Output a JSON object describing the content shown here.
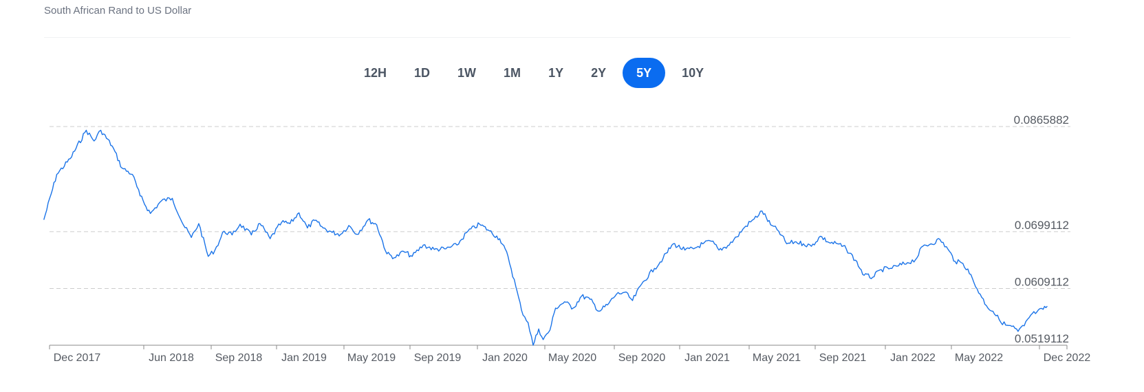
{
  "header": {
    "title": "South African Rand to US Dollar"
  },
  "ranges": {
    "items": [
      "12H",
      "1D",
      "1W",
      "1M",
      "1Y",
      "2Y",
      "5Y",
      "10Y"
    ],
    "active": "5Y"
  },
  "colors": {
    "accent": "#0a6cf0",
    "line": "#1a73e8",
    "grid": "#cccccc",
    "axis": "#888888"
  },
  "chart_data": {
    "type": "line",
    "title": "South African Rand to US Dollar",
    "xlabel": "",
    "ylabel": "",
    "ylim": [
      0.0519112,
      0.0865882
    ],
    "y_ticks": [
      0.0865882,
      0.0699112,
      0.0609112,
      0.0519112
    ],
    "y_tick_labels": [
      "0.0865882",
      "0.0699112",
      "0.0609112",
      "0.0519112"
    ],
    "x_ticks": [
      "2017-12-01",
      "2018-06-01",
      "2018-09-01",
      "2019-01-01",
      "2019-05-01",
      "2019-09-01",
      "2020-01-01",
      "2020-05-01",
      "2020-09-01",
      "2021-01-01",
      "2021-05-01",
      "2021-09-01",
      "2022-01-01",
      "2022-05-01",
      "2022-12-01"
    ],
    "x_tick_labels": [
      "Dec 2017",
      "Jun 2018",
      "Sep 2018",
      "Jan 2019",
      "May 2019",
      "Sep 2019",
      "Jan 2020",
      "May 2020",
      "Sep 2020",
      "Jan 2021",
      "May 2021",
      "Sep 2021",
      "Jan 2022",
      "May 2022",
      "Dec 2022"
    ],
    "grid": true,
    "series": [
      {
        "x": [
          "2017-11-20",
          "2017-12-15",
          "2018-01-10",
          "2018-02-10",
          "2018-02-25",
          "2018-03-10",
          "2018-04-01",
          "2018-04-20",
          "2018-05-10",
          "2018-05-25",
          "2018-06-10",
          "2018-06-25",
          "2018-07-10",
          "2018-07-25",
          "2018-08-05",
          "2018-08-15",
          "2018-08-28",
          "2018-09-08",
          "2018-09-25",
          "2018-10-10",
          "2018-10-25",
          "2018-11-15",
          "2018-12-01",
          "2018-12-20",
          "2019-01-10",
          "2019-01-25",
          "2019-02-10",
          "2019-02-25",
          "2019-03-10",
          "2019-03-25",
          "2019-04-10",
          "2019-04-25",
          "2019-05-10",
          "2019-05-25",
          "2019-06-15",
          "2019-07-01",
          "2019-07-20",
          "2019-08-05",
          "2019-08-20",
          "2019-09-05",
          "2019-09-25",
          "2019-10-15",
          "2019-11-05",
          "2019-11-25",
          "2019-12-15",
          "2020-01-05",
          "2020-01-20",
          "2020-02-10",
          "2020-02-25",
          "2020-03-10",
          "2020-03-20",
          "2020-04-01",
          "2020-04-10",
          "2020-04-20",
          "2020-04-28",
          "2020-05-10",
          "2020-05-20",
          "2020-06-05",
          "2020-06-20",
          "2020-07-05",
          "2020-07-20",
          "2020-08-05",
          "2020-08-20",
          "2020-09-05",
          "2020-09-20",
          "2020-10-05",
          "2020-10-25",
          "2020-11-15",
          "2020-12-01",
          "2020-12-20",
          "2021-01-10",
          "2021-01-25",
          "2021-02-10",
          "2021-02-25",
          "2021-03-10",
          "2021-03-25",
          "2021-04-10",
          "2021-04-25",
          "2021-05-10",
          "2021-05-25",
          "2021-06-10",
          "2021-06-25",
          "2021-07-10",
          "2021-07-25",
          "2021-08-10",
          "2021-08-25",
          "2021-09-10",
          "2021-09-25",
          "2021-10-10",
          "2021-10-25",
          "2021-11-10",
          "2021-11-25",
          "2021-12-10",
          "2021-12-25",
          "2022-01-10",
          "2022-01-25",
          "2022-02-10",
          "2022-02-25",
          "2022-03-10",
          "2022-03-25",
          "2022-04-10",
          "2022-04-25",
          "2022-05-10",
          "2022-05-25",
          "2022-06-10",
          "2022-06-25",
          "2022-07-10",
          "2022-07-25",
          "2022-08-10",
          "2022-08-25",
          "2022-09-10",
          "2022-09-25",
          "2022-10-10",
          "2022-10-25",
          "2022-11-10",
          "2022-11-25",
          "2022-12-10",
          "2022-12-20"
        ],
        "y": [
          0.0718,
          0.079,
          0.0815,
          0.086,
          0.0843,
          0.086,
          0.0835,
          0.08,
          0.079,
          0.0756,
          0.0728,
          0.0748,
          0.0752,
          0.071,
          0.069,
          0.0712,
          0.066,
          0.067,
          0.07,
          0.0694,
          0.0711,
          0.0694,
          0.0712,
          0.0688,
          0.0714,
          0.0712,
          0.0729,
          0.0705,
          0.0717,
          0.0705,
          0.0698,
          0.0695,
          0.0709,
          0.0695,
          0.0718,
          0.071,
          0.0664,
          0.0658,
          0.0668,
          0.066,
          0.0678,
          0.0671,
          0.0672,
          0.0678,
          0.07,
          0.0711,
          0.0702,
          0.0688,
          0.066,
          0.0612,
          0.0575,
          0.0555,
          0.0519,
          0.0545,
          0.0528,
          0.0543,
          0.0578,
          0.0588,
          0.0578,
          0.0597,
          0.0592,
          0.0573,
          0.0583,
          0.06,
          0.0603,
          0.059,
          0.062,
          0.0641,
          0.0657,
          0.068,
          0.067,
          0.0672,
          0.068,
          0.0684,
          0.067,
          0.0677,
          0.0691,
          0.0708,
          0.0719,
          0.0732,
          0.071,
          0.07,
          0.068,
          0.0683,
          0.068,
          0.0676,
          0.0692,
          0.0682,
          0.068,
          0.0672,
          0.0654,
          0.063,
          0.0627,
          0.0639,
          0.0641,
          0.0645,
          0.065,
          0.0655,
          0.0676,
          0.068,
          0.0687,
          0.0671,
          0.0652,
          0.065,
          0.064,
          0.0618,
          0.06,
          0.0582,
          0.0573,
          0.056,
          0.0551,
          0.0549,
          0.0541,
          0.055,
          0.0567,
          0.0572,
          0.0576,
          0.0581
        ]
      }
    ]
  }
}
